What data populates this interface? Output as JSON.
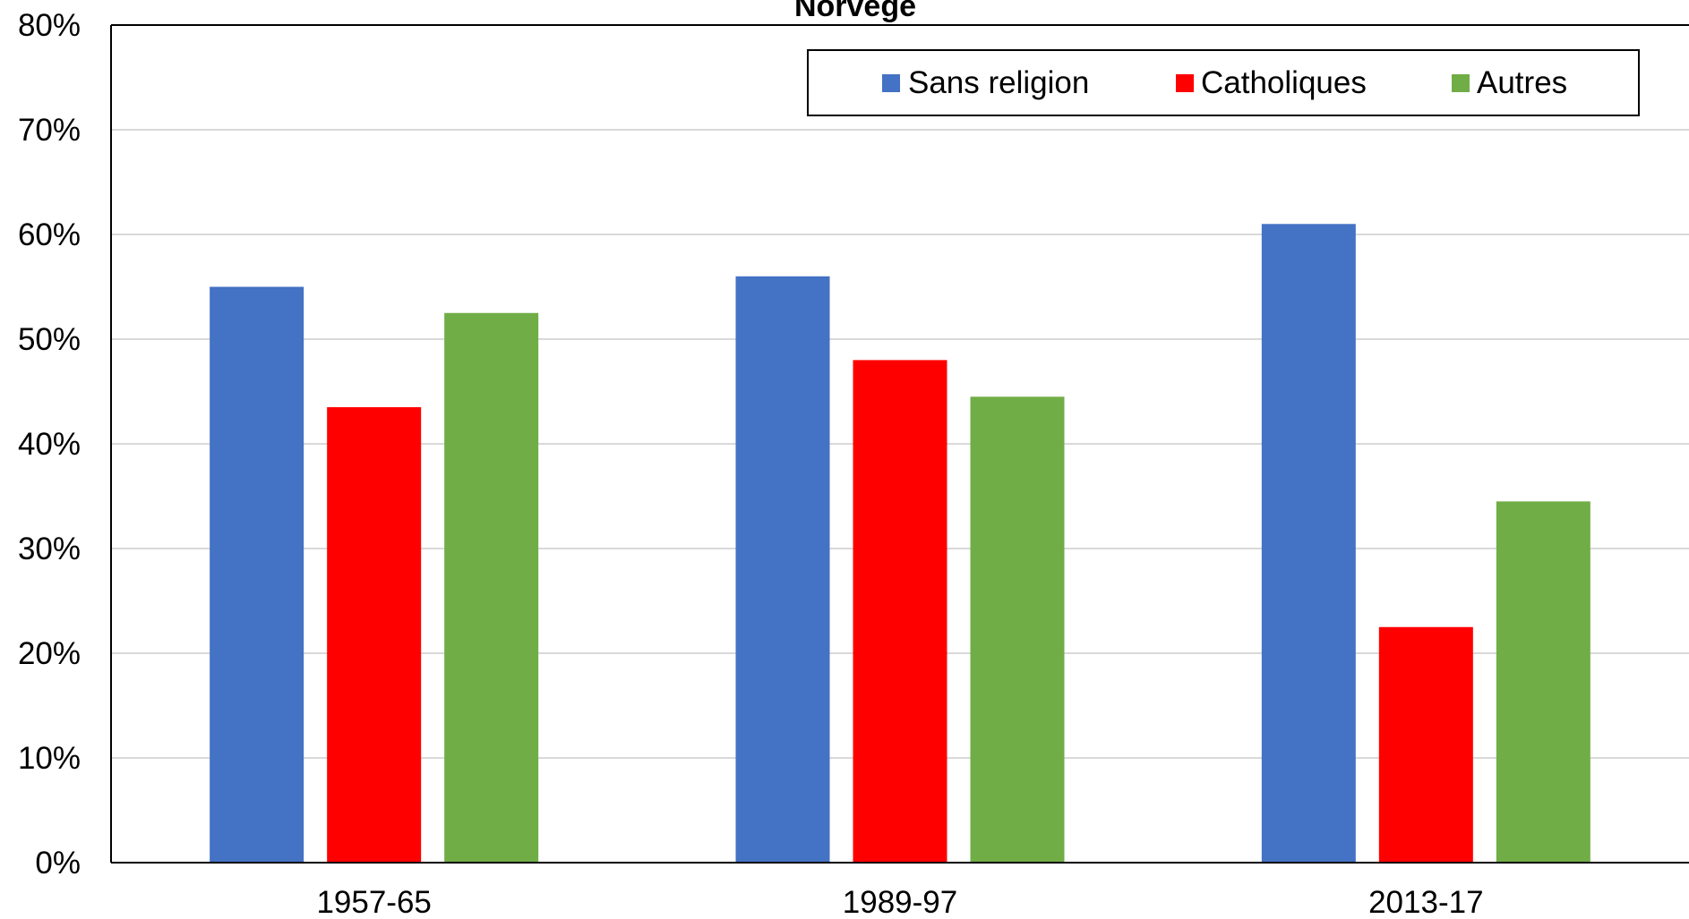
{
  "chart_data": {
    "type": "bar",
    "title": "Norvège",
    "xlabel": "",
    "ylabel": "",
    "ylim": [
      0,
      80
    ],
    "yticks": [
      "0%",
      "10%",
      "20%",
      "30%",
      "40%",
      "50%",
      "60%",
      "70%",
      "80%"
    ],
    "categories": [
      "1957-65",
      "1989-97",
      "2013-17"
    ],
    "series": [
      {
        "name": "Sans religion",
        "color": "#4472c4",
        "values": [
          55,
          56,
          61
        ]
      },
      {
        "name": "Catholiques",
        "color": "#ff0000",
        "values": [
          43.5,
          48,
          22.5
        ]
      },
      {
        "name": "Autres",
        "color": "#70ad47",
        "values": [
          52.5,
          44.5,
          34.5
        ]
      }
    ],
    "grid": true,
    "legend_position": "top-right"
  }
}
